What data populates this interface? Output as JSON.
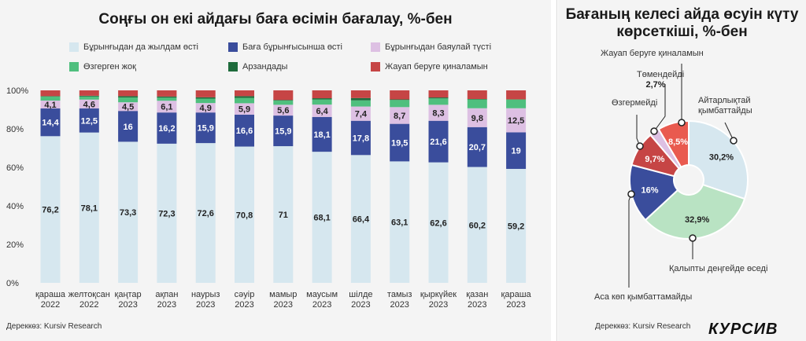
{
  "left": {
    "title": "Соңғы он екі айдағы баға өсімін бағалау, %-бен",
    "source": "Дереккөз: Kursiv Research"
  },
  "right": {
    "title_line1": "Бағаның келесі айда өсуін күту",
    "title_line2": "көрсеткіші, %-бен",
    "source": "Дереккөз: Kursiv Research",
    "brand": "КУРСИВ"
  },
  "colors": {
    "light_blue": "#d6e7ef",
    "navy": "#3a4d9c",
    "lilac": "#ddc0e3",
    "green": "#4fbf7e",
    "dark_green": "#1e6b3c",
    "red": "#c64545",
    "donut_light_blue": "#d6e7ef",
    "donut_green": "#b9e3c3",
    "donut_navy": "#3a4d9c",
    "donut_red": "#c64545",
    "donut_lilac": "#ddc0e3",
    "donut_bright_red": "#e95a4f"
  },
  "chart_data": [
    {
      "type": "bar",
      "stacked": true,
      "categories": [
        [
          "қараша",
          "2022"
        ],
        [
          "желтоқсан",
          "2022"
        ],
        [
          "қаңтар",
          "2023"
        ],
        [
          "ақпан",
          "2023"
        ],
        [
          "наурыз",
          "2023"
        ],
        [
          "сәуір",
          "2023"
        ],
        [
          "мамыр",
          "2023"
        ],
        [
          "маусым",
          "2023"
        ],
        [
          "шілде",
          "2023"
        ],
        [
          "тамыз",
          "2023"
        ],
        [
          "қыркүйек",
          "2023"
        ],
        [
          "қазан",
          "2023"
        ],
        [
          "қараша",
          "2023"
        ]
      ],
      "ylim": [
        0,
        100
      ],
      "yticks": [
        "0%",
        "20%",
        "40%",
        "60%",
        "80%",
        "100%"
      ],
      "grid": false,
      "legend_position": "top",
      "series": [
        {
          "name": "Бұрынғыдан да жылдам өсті",
          "color_key": "light_blue",
          "label_color": "#222222",
          "values": [
            76.2,
            78.1,
            73.3,
            72.3,
            72.6,
            70.8,
            71,
            68.1,
            66.4,
            63.1,
            62.6,
            60.2,
            59.2
          ],
          "labels": [
            "76,2",
            "78,1",
            "73,3",
            "72,3",
            "72,6",
            "70,8",
            "71",
            "68,1",
            "66,4",
            "63,1",
            "62,6",
            "60,2",
            "59,2"
          ]
        },
        {
          "name": "Баға бұрынғысынша өсті",
          "color_key": "navy",
          "label_color": "#ffffff",
          "values": [
            14.4,
            12.5,
            16,
            16.2,
            15.9,
            16.6,
            15.9,
            18.1,
            17.8,
            19.5,
            21.6,
            20.7,
            19
          ],
          "labels": [
            "14,4",
            "12,5",
            "16",
            "16,2",
            "15,9",
            "16,6",
            "15,9",
            "18,1",
            "17,8",
            "19,5",
            "21,6",
            "20,7",
            "19"
          ]
        },
        {
          "name": "Бұрынғыдан баяулай түсті",
          "color_key": "lilac",
          "label_color": "#222222",
          "values": [
            4.1,
            4.6,
            4.5,
            6.1,
            4.9,
            5.9,
            5.6,
            6.4,
            7.4,
            8.7,
            8.3,
            9.8,
            12.5
          ],
          "labels": [
            "4,1",
            "4,6",
            "4,5",
            "6,1",
            "4,9",
            "5,9",
            "5,6",
            "6,4",
            "7,4",
            "8,7",
            "8,3",
            "9,8",
            "12,5"
          ]
        },
        {
          "name": "Өзгерген жоқ",
          "color_key": "green",
          "label_color": "#222222",
          "values": [
            2.2,
            1.6,
            2.5,
            1.6,
            2.3,
            2.8,
            2.2,
            2.7,
            3.2,
            3.7,
            3.3,
            4.6,
            4.6
          ],
          "labels": []
        },
        {
          "name": "Арзандады",
          "color_key": "dark_green",
          "label_color": "#ffffff",
          "values": [
            0.1,
            0.4,
            0.7,
            0.6,
            0.7,
            0.9,
            0.3,
            0.6,
            1.2,
            0.3,
            0.5,
            0.2,
            0
          ],
          "labels": []
        },
        {
          "name": "Жауап беруге қиналамын",
          "color_key": "red",
          "label_color": "#ffffff",
          "values": [
            3.0,
            2.8,
            3.0,
            3.2,
            3.6,
            3.0,
            5.0,
            4.1,
            4.0,
            4.7,
            3.7,
            4.5,
            4.7
          ],
          "labels": []
        }
      ]
    },
    {
      "type": "pie",
      "donut": true,
      "start_angle_deg": 0,
      "slices": [
        {
          "name": "Айтарлықтай қымбаттайды",
          "value": 30.2,
          "label": "30,2%",
          "color_key": "donut_light_blue",
          "label_color": "#222222",
          "callout": [
            "Айтарлықтай",
            "қымбаттайды"
          ]
        },
        {
          "name": "Қалыпты деңгейде өседі",
          "value": 32.9,
          "label": "32,9%",
          "color_key": "donut_green",
          "label_color": "#222222",
          "callout": [
            "Қалыпты деңгейде өседі"
          ]
        },
        {
          "name": "Аса көп қымбаттамайды",
          "value": 16,
          "label": "16%",
          "color_key": "donut_navy",
          "label_color": "#ffffff",
          "callout": [
            "Аса көп қымбаттамайды"
          ]
        },
        {
          "name": "Өзгермейді",
          "value": 9.7,
          "label": "9,7%",
          "color_key": "donut_red",
          "label_color": "#ffffff",
          "callout": [
            "Өзгермейді"
          ]
        },
        {
          "name": "Төмендейді",
          "value": 2.7,
          "label": "2,7%",
          "color_key": "donut_lilac",
          "label_color": "#222222",
          "callout": [
            "Төмендейді"
          ]
        },
        {
          "name": "Жауап беруге қиналамын",
          "value": 8.5,
          "label": "8,5%",
          "color_key": "donut_bright_red",
          "label_color": "#ffffff",
          "callout": [
            "Жауап беруге қиналамын"
          ]
        }
      ]
    }
  ]
}
